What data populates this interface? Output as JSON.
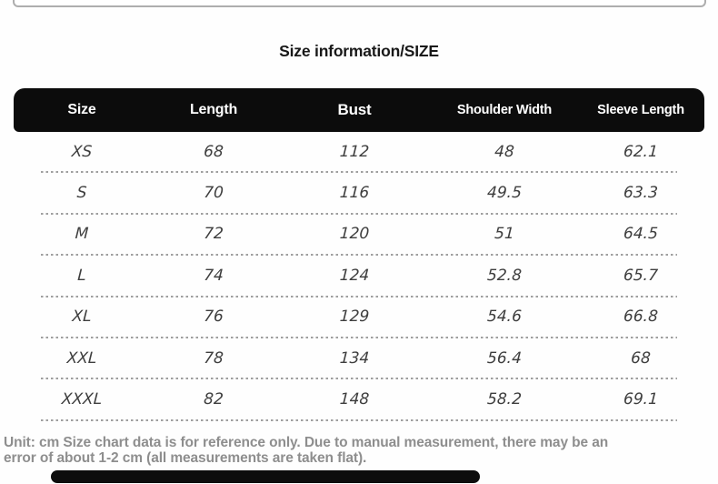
{
  "title": "Size information/SIZE",
  "table": {
    "columns": [
      "Size",
      "Length",
      "Bust",
      "Shoulder Width",
      "Sleeve Length"
    ],
    "rows": [
      [
        "XS",
        "68",
        "112",
        "48",
        "62.1"
      ],
      [
        "S",
        "70",
        "116",
        "49.5",
        "63.3"
      ],
      [
        "M",
        "72",
        "120",
        "51",
        "64.5"
      ],
      [
        "L",
        "74",
        "124",
        "52.8",
        "65.7"
      ],
      [
        "XL",
        "76",
        "129",
        "54.6",
        "66.8"
      ],
      [
        "XXL",
        "78",
        "134",
        "56.4",
        "68"
      ],
      [
        "XXXL",
        "82",
        "148",
        "58.2",
        "69.1"
      ]
    ]
  },
  "footnote": {
    "lines": [
      "Unit: cm Size chart data is for reference only. Due to manual measurement, there may be an",
      "error of about 1-2 cm (all measurements are taken flat)."
    ]
  },
  "colors": {
    "header_bg": "#0c0c0c",
    "header_text": "#ffffff",
    "cell_text": "#3e3e3e",
    "separator": "#9f9f9f",
    "footnote_text": "#8e8e8e",
    "title_text": "#191919"
  }
}
